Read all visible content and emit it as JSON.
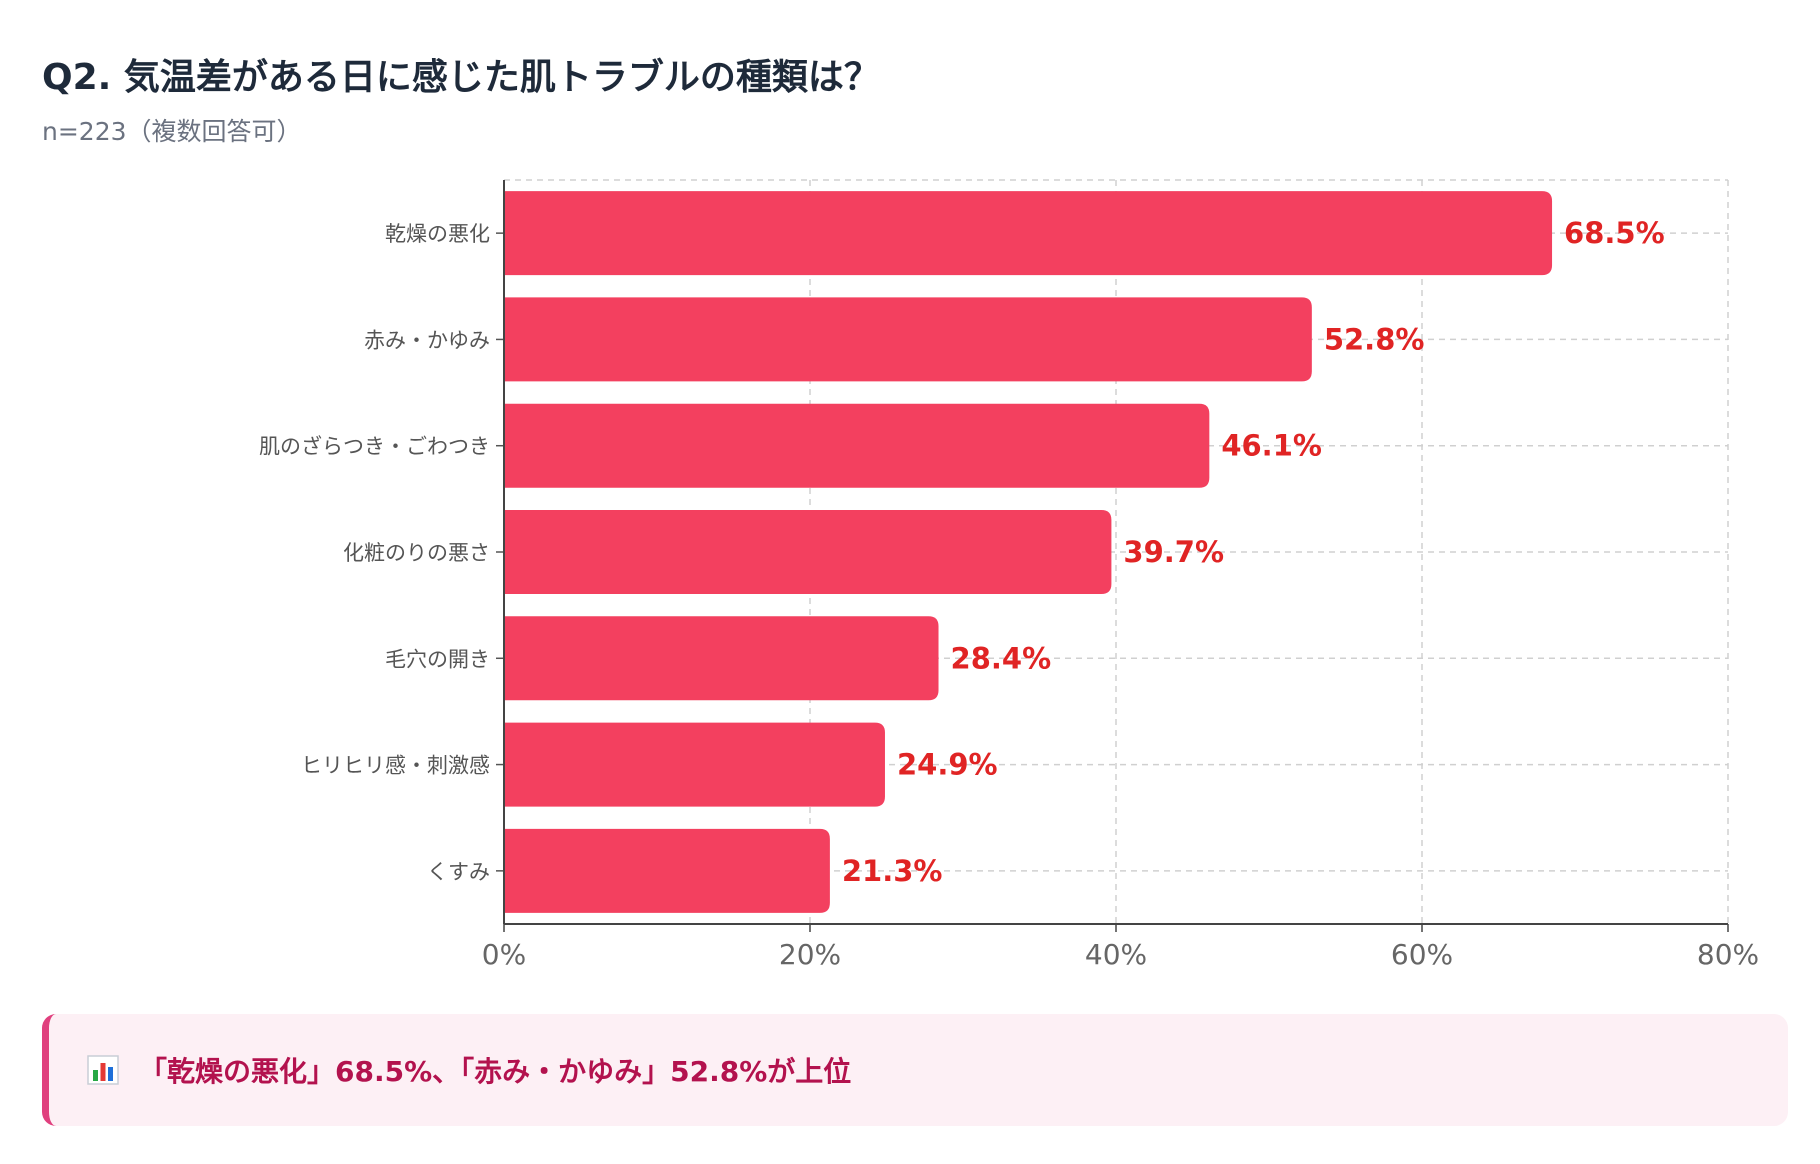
{
  "header": {
    "title": "Q2. 気温差がある日に感じた肌トラブルの種類は？",
    "subtitle": "n=223（複数回答可）"
  },
  "chart_data": {
    "type": "bar",
    "orientation": "horizontal",
    "categories": [
      "乾燥の悪化",
      "赤み・かゆみ",
      "肌のざらつき・ごわつき",
      "化粧のりの悪さ",
      "毛穴の開き",
      "ヒリヒリ感・刺激感",
      "くすみ"
    ],
    "values": [
      68.5,
      52.8,
      46.1,
      39.7,
      28.4,
      24.9,
      21.3
    ],
    "value_labels": [
      "68.5%",
      "52.8%",
      "46.1%",
      "39.7%",
      "28.4%",
      "24.9%",
      "21.3%"
    ],
    "xlim": [
      0,
      80
    ],
    "x_ticks": [
      0,
      20,
      40,
      60,
      80
    ],
    "x_tick_labels": [
      "0%",
      "20%",
      "40%",
      "60%",
      "80%"
    ],
    "grid": true,
    "bar_color": "#f3405f",
    "label_color": "#e02424"
  },
  "summary": {
    "icon": "bar-chart-icon",
    "text": "「乾燥の悪化」68.5%、「赤み・かゆみ」52.8%が上位",
    "accent_color": "#e0407e"
  }
}
